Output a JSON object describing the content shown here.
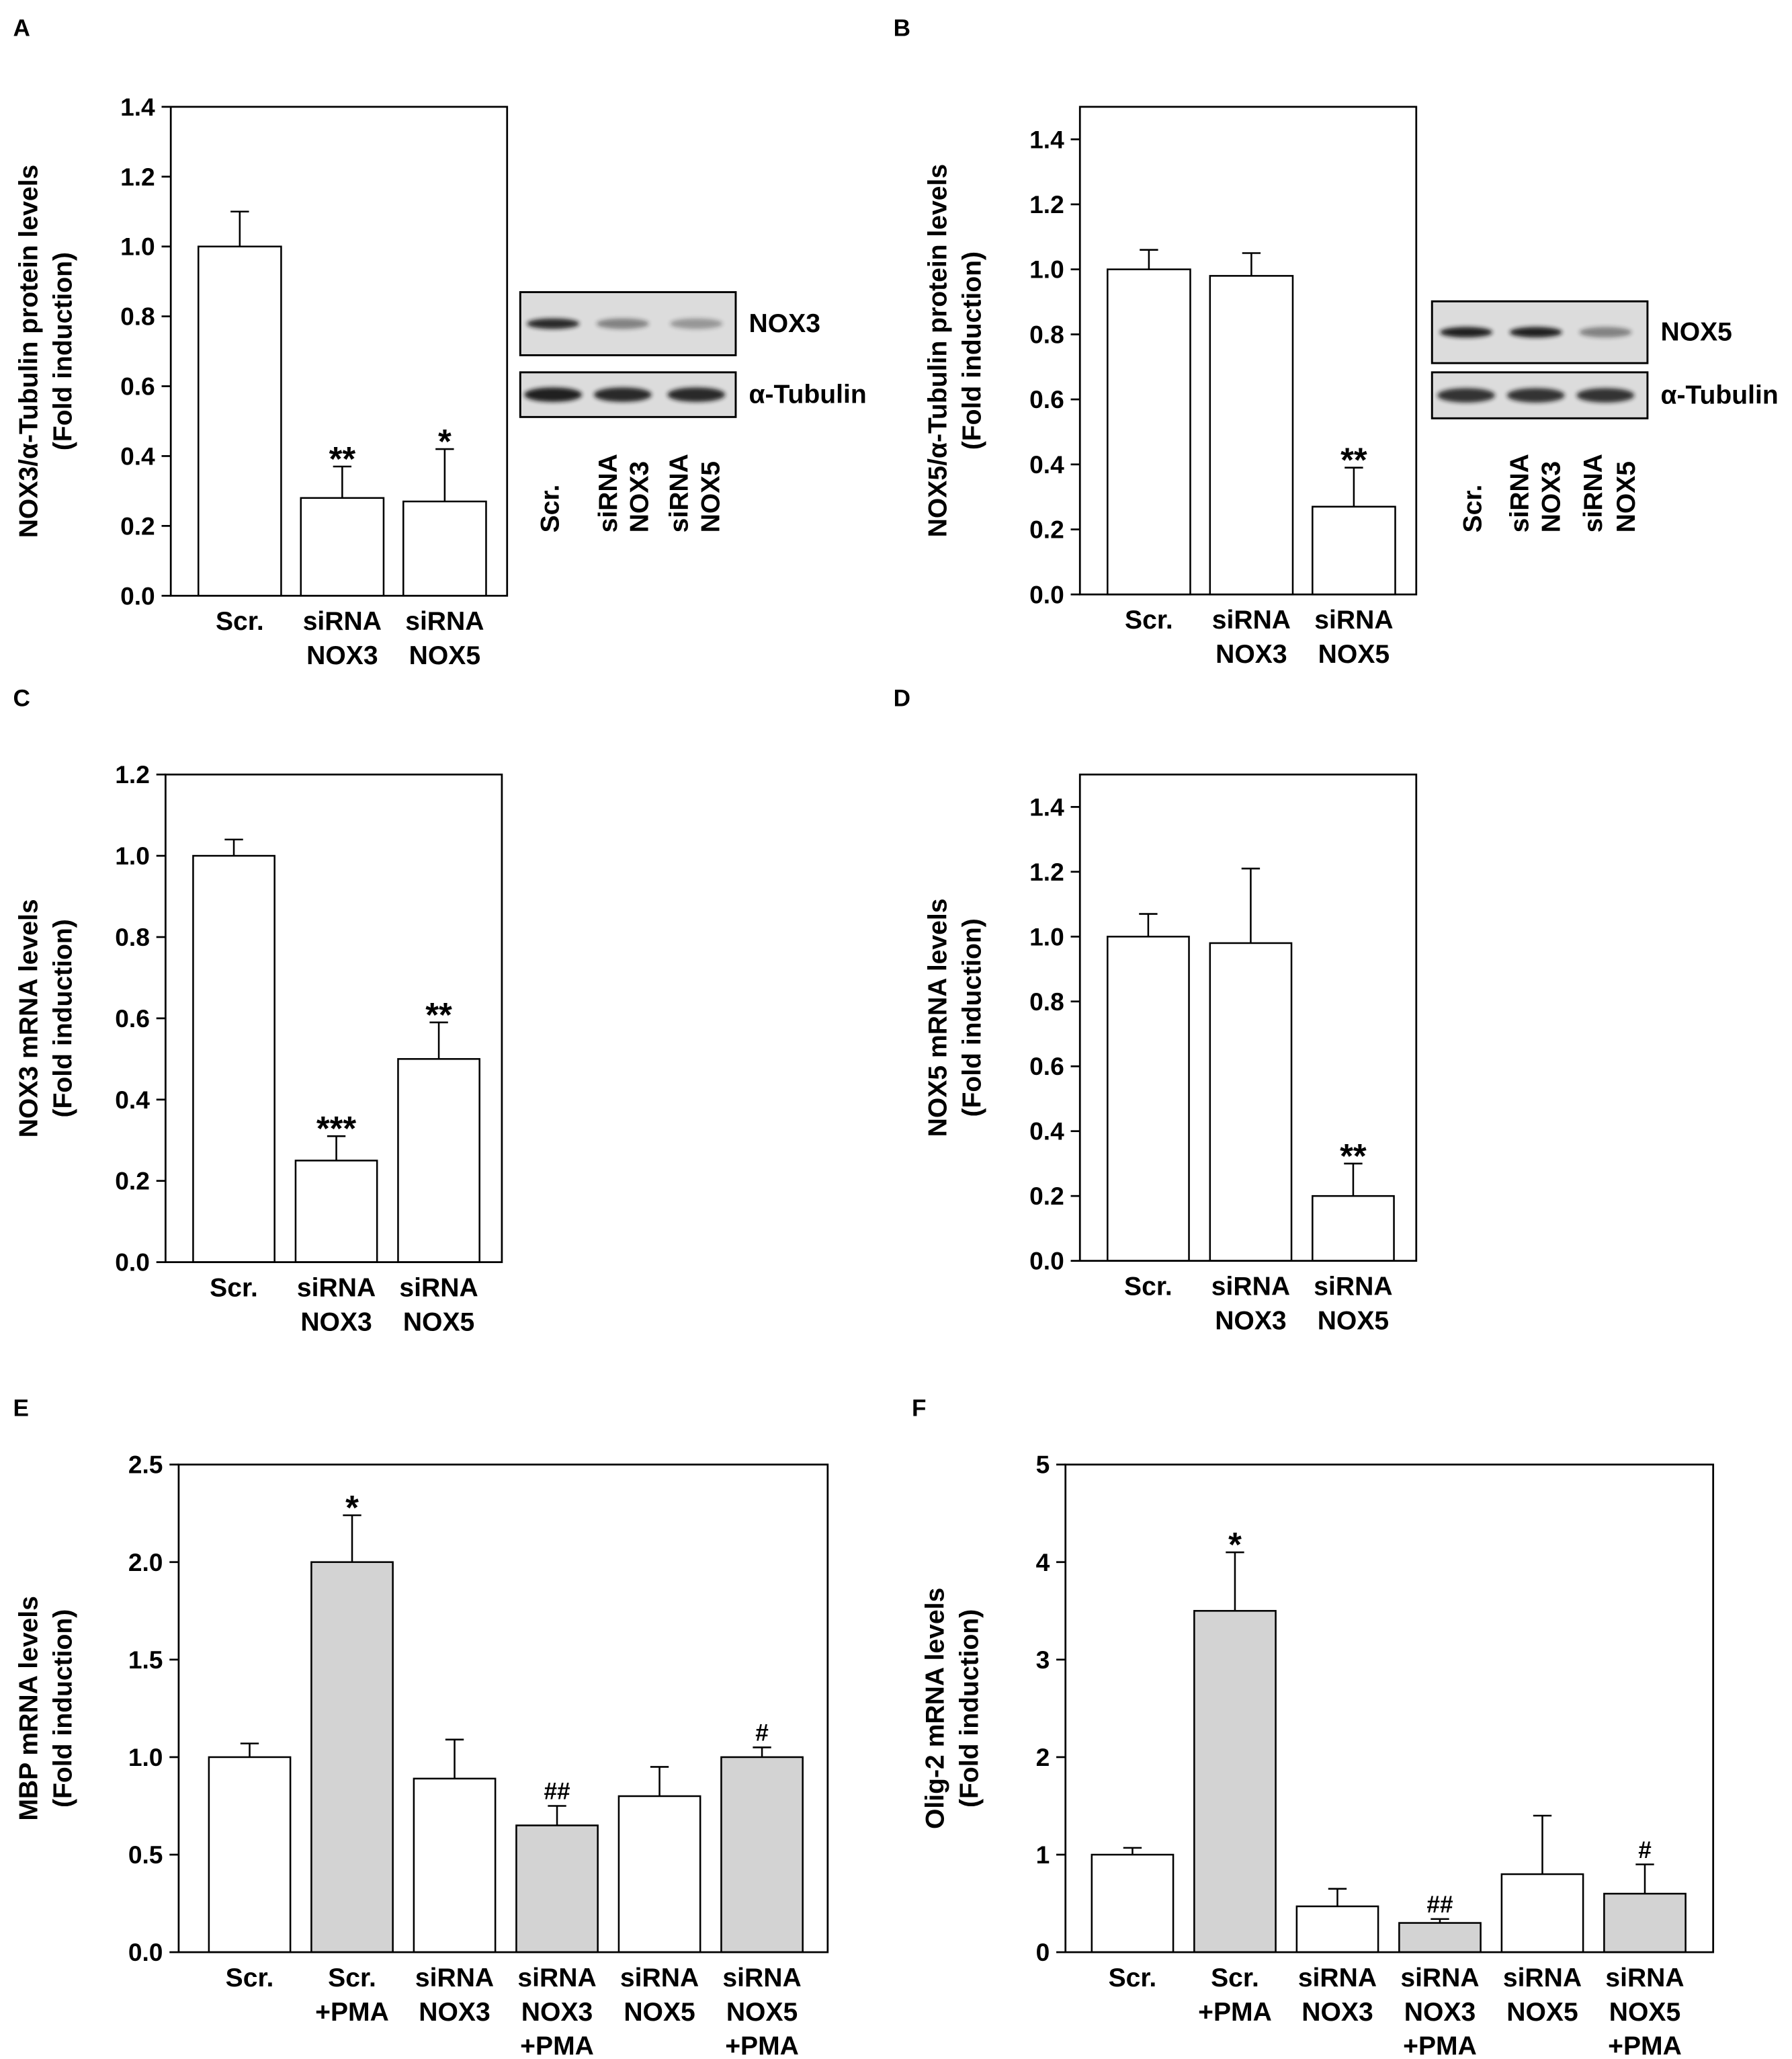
{
  "colors": {
    "axis": "#000000",
    "blot_background": "#dcdcdc",
    "band": "#141414"
  },
  "chart_data": [
    {
      "panel": "A",
      "type": "bar",
      "ylabel": [
        "NOX3/α-Tubulin protein levels",
        "(Fold induction)"
      ],
      "ylim": [
        0,
        1.4
      ],
      "yticks": [
        "0.0",
        "0.2",
        "0.4",
        "0.6",
        "0.8",
        "1.0",
        "1.2",
        "1.4"
      ],
      "categories": [
        [
          "Scr."
        ],
        [
          "siRNA",
          "NOX3"
        ],
        [
          "siRNA",
          "NOX5"
        ]
      ],
      "values": [
        1.0,
        0.28,
        0.27
      ],
      "errors": [
        0.1,
        0.09,
        0.15
      ],
      "annotations": [
        "",
        "**",
        "*"
      ],
      "bar_colors": [
        "#ffffff",
        "#ffffff",
        "#ffffff"
      ]
    },
    {
      "panel": "B",
      "type": "bar",
      "ylabel": [
        "NOX5/α-Tubulin protein levels",
        "(Fold induction)"
      ],
      "ylim": [
        0,
        1.5
      ],
      "yticks": [
        "0.0",
        "0.2",
        "0.4",
        "0.6",
        "0.8",
        "1.0",
        "1.2",
        "1.4"
      ],
      "categories": [
        [
          "Scr."
        ],
        [
          "siRNA",
          "NOX3"
        ],
        [
          "siRNA",
          "NOX5"
        ]
      ],
      "values": [
        1.0,
        0.98,
        0.27
      ],
      "errors": [
        0.06,
        0.07,
        0.12
      ],
      "annotations": [
        "",
        "",
        "**"
      ],
      "bar_colors": [
        "#ffffff",
        "#ffffff",
        "#ffffff"
      ]
    },
    {
      "panel": "C",
      "type": "bar",
      "ylabel": [
        "NOX3 mRNA levels",
        "(Fold induction)"
      ],
      "ylim": [
        0,
        1.2
      ],
      "yticks": [
        "0.0",
        "0.2",
        "0.4",
        "0.6",
        "0.8",
        "1.0",
        "1.2"
      ],
      "categories": [
        [
          "Scr."
        ],
        [
          "siRNA",
          "NOX3"
        ],
        [
          "siRNA",
          "NOX5"
        ]
      ],
      "values": [
        1.0,
        0.25,
        0.5
      ],
      "errors": [
        0.04,
        0.06,
        0.09
      ],
      "annotations": [
        "",
        "***",
        "**"
      ],
      "bar_colors": [
        "#ffffff",
        "#ffffff",
        "#ffffff"
      ]
    },
    {
      "panel": "D",
      "type": "bar",
      "ylabel": [
        "NOX5 mRNA levels",
        "(Fold induction)"
      ],
      "ylim": [
        0,
        1.5
      ],
      "yticks": [
        "0.0",
        "0.2",
        "0.4",
        "0.6",
        "0.8",
        "1.0",
        "1.2",
        "1.4"
      ],
      "categories": [
        [
          "Scr."
        ],
        [
          "siRNA",
          "NOX3"
        ],
        [
          "siRNA",
          "NOX5"
        ]
      ],
      "values": [
        1.0,
        0.98,
        0.2
      ],
      "errors": [
        0.07,
        0.23,
        0.1
      ],
      "annotations": [
        "",
        "",
        "**"
      ],
      "bar_colors": [
        "#ffffff",
        "#ffffff",
        "#ffffff"
      ]
    },
    {
      "panel": "E",
      "type": "bar",
      "ylabel": [
        "MBP mRNA levels",
        "(Fold induction)"
      ],
      "ylim": [
        0,
        2.5
      ],
      "yticks": [
        "0.0",
        "0.5",
        "1.0",
        "1.5",
        "2.0",
        "2.5"
      ],
      "categories": [
        [
          "Scr."
        ],
        [
          "Scr.",
          "+PMA"
        ],
        [
          "siRNA",
          "NOX3"
        ],
        [
          "siRNA",
          "NOX3",
          "+PMA"
        ],
        [
          "siRNA",
          "NOX5"
        ],
        [
          "siRNA",
          "NOX5",
          "+PMA"
        ]
      ],
      "values": [
        1.0,
        2.0,
        0.89,
        0.65,
        0.8,
        1.0
      ],
      "errors": [
        0.07,
        0.24,
        0.2,
        0.1,
        0.15,
        0.05
      ],
      "annotations": [
        "",
        "*",
        "",
        "##",
        "",
        "#"
      ],
      "bar_colors": [
        "#ffffff",
        "#d3d3d3",
        "#ffffff",
        "#d3d3d3",
        "#ffffff",
        "#d3d3d3"
      ]
    },
    {
      "panel": "F",
      "type": "bar",
      "ylabel": [
        "Olig-2 mRNA levels",
        "(Fold induction)"
      ],
      "ylim": [
        0,
        5
      ],
      "yticks": [
        "0",
        "1",
        "2",
        "3",
        "4",
        "5"
      ],
      "categories": [
        [
          "Scr."
        ],
        [
          "Scr.",
          "+PMA"
        ],
        [
          "siRNA",
          "NOX3"
        ],
        [
          "siRNA",
          "NOX3",
          "+PMA"
        ],
        [
          "siRNA",
          "NOX5"
        ],
        [
          "siRNA",
          "NOX5",
          "+PMA"
        ]
      ],
      "values": [
        1.0,
        3.5,
        0.47,
        0.3,
        0.8,
        0.6
      ],
      "errors": [
        0.07,
        0.6,
        0.18,
        0.04,
        0.6,
        0.3
      ],
      "annotations": [
        "",
        "*",
        "",
        "##",
        "",
        "#"
      ],
      "bar_colors": [
        "#ffffff",
        "#d3d3d3",
        "#ffffff",
        "#d3d3d3",
        "#ffffff",
        "#d3d3d3"
      ]
    }
  ],
  "blots": [
    {
      "panel": "A",
      "bands": [
        {
          "name": "NOX3",
          "intensity": [
            0.9,
            0.45,
            0.35
          ]
        },
        {
          "name": "α-Tubulin",
          "intensity": [
            0.95,
            0.9,
            0.9
          ]
        }
      ],
      "lanes": [
        [
          "Scr."
        ],
        [
          "siRNA",
          "NOX3"
        ],
        [
          "siRNA",
          "NOX5"
        ]
      ]
    },
    {
      "panel": "B",
      "bands": [
        {
          "name": "NOX5",
          "intensity": [
            0.95,
            0.95,
            0.45
          ]
        },
        {
          "name": "α-Tubulin",
          "intensity": [
            0.85,
            0.85,
            0.85
          ]
        }
      ],
      "lanes": [
        [
          "Scr."
        ],
        [
          "siRNA",
          "NOX3"
        ],
        [
          "siRNA",
          "NOX5"
        ]
      ]
    }
  ]
}
